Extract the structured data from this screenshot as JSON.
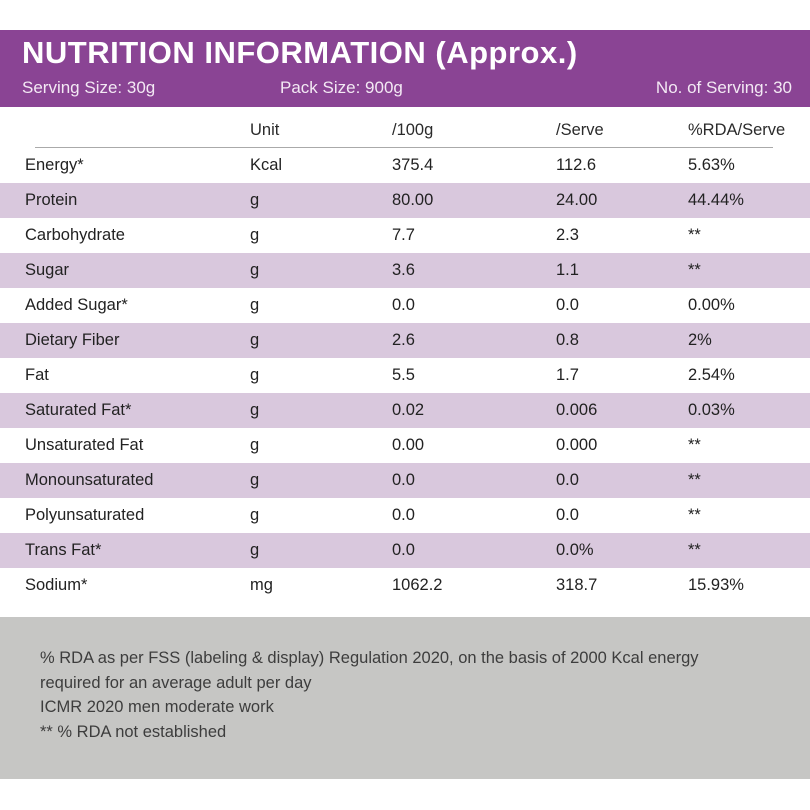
{
  "header": {
    "title": "NUTRITION INFORMATION (Approx.)",
    "serving_size": "Serving Size: 30g",
    "pack_size": "Pack Size: 900g",
    "no_of_serving": "No. of Serving: 30"
  },
  "table": {
    "columns": [
      "",
      "Unit",
      "/100g",
      "/Serve",
      "%RDA/Serve"
    ],
    "rows": [
      {
        "nutrient": "Energy*",
        "unit": "Kcal",
        "per_100g": "375.4",
        "per_serve": "112.6",
        "rda_per_serve": "5.63%"
      },
      {
        "nutrient": "Protein",
        "unit": "g",
        "per_100g": "80.00",
        "per_serve": "24.00",
        "rda_per_serve": "44.44%"
      },
      {
        "nutrient": "Carbohydrate",
        "unit": "g",
        "per_100g": "7.7",
        "per_serve": "2.3",
        "rda_per_serve": "**"
      },
      {
        "nutrient": "Sugar",
        "unit": "g",
        "per_100g": "3.6",
        "per_serve": "1.1",
        "rda_per_serve": "**"
      },
      {
        "nutrient": "Added Sugar*",
        "unit": "g",
        "per_100g": "0.0",
        "per_serve": "0.0",
        "rda_per_serve": "0.00%"
      },
      {
        "nutrient": "Dietary Fiber",
        "unit": "g",
        "per_100g": "2.6",
        "per_serve": "0.8",
        "rda_per_serve": "2%"
      },
      {
        "nutrient": "Fat",
        "unit": "g",
        "per_100g": "5.5",
        "per_serve": "1.7",
        "rda_per_serve": "2.54%"
      },
      {
        "nutrient": "Saturated Fat*",
        "unit": "g",
        "per_100g": "0.02",
        "per_serve": "0.006",
        "rda_per_serve": "0.03%"
      },
      {
        "nutrient": "Unsaturated Fat",
        "unit": "g",
        "per_100g": "0.00",
        "per_serve": "0.000",
        "rda_per_serve": "**"
      },
      {
        "nutrient": "Monounsaturated",
        "unit": "g",
        "per_100g": "0.0",
        "per_serve": "0.0",
        "rda_per_serve": "**"
      },
      {
        "nutrient": "Polyunsaturated",
        "unit": "g",
        "per_100g": "0.0",
        "per_serve": "0.0",
        "rda_per_serve": "**"
      },
      {
        "nutrient": "Trans Fat*",
        "unit": "g",
        "per_100g": "0.0",
        "per_serve": "0.0%",
        "rda_per_serve": "**"
      },
      {
        "nutrient": "Sodium*",
        "unit": "mg",
        "per_100g": "1062.2",
        "per_serve": "318.7",
        "rda_per_serve": "15.93%"
      }
    ]
  },
  "footnotes": {
    "lines": [
      "% RDA as per FSS (labeling & display) Regulation 2020, on the basis of 2000 Kcal energy",
      "required for an average adult per day",
      "ICMR 2020 men moderate work",
      "** % RDA not established"
    ]
  },
  "colors": {
    "header_purple": "#8a4494",
    "row_lavender": "#d9c8dd",
    "footer_gray": "#c6c6c4"
  }
}
